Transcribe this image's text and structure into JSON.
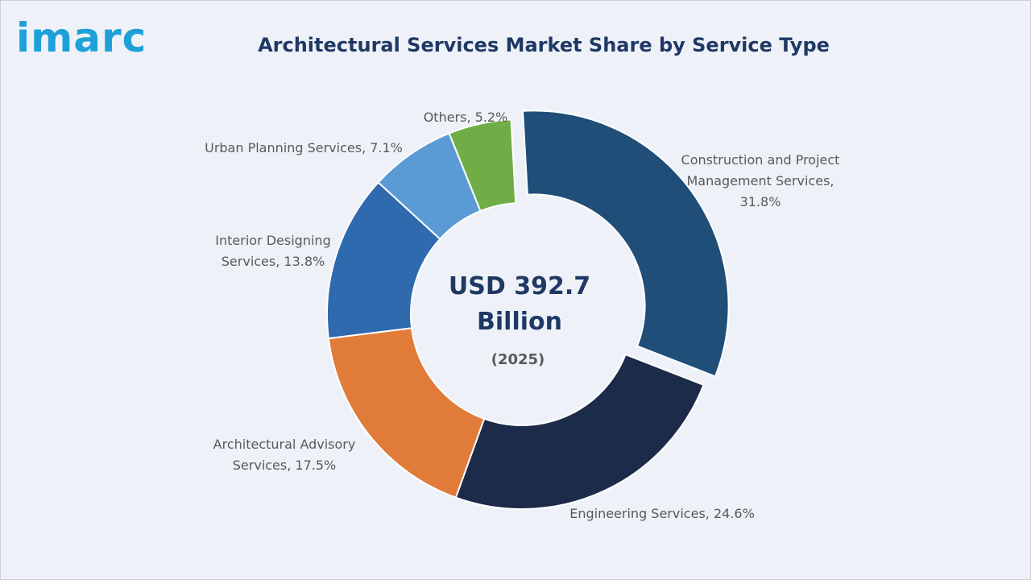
{
  "logo": {
    "text": "imarc",
    "color": "#1ea0d8"
  },
  "chart_data": {
    "type": "pie",
    "variant": "donut",
    "title": "Architectural Services Market Share by Service Type",
    "center": {
      "line1": "USD 392.7",
      "line2": "Billion",
      "line3": "(2025)"
    },
    "slices": [
      {
        "label_lines": [
          "Construction and Project",
          "Management Services,",
          "31.8%"
        ],
        "value": 31.8,
        "color": "#1f4e79",
        "exploded": true
      },
      {
        "label_lines": [
          "Engineering Services, 24.6%"
        ],
        "value": 24.6,
        "color": "#1c2b4a",
        "exploded": false
      },
      {
        "label_lines": [
          "Architectural Advisory",
          "Services, 17.5%"
        ],
        "value": 17.5,
        "color": "#e07b39",
        "exploded": false
      },
      {
        "label_lines": [
          "Interior Designing",
          "Services, 13.8%"
        ],
        "value": 13.8,
        "color": "#2e6aad",
        "exploded": false
      },
      {
        "label_lines": [
          "Urban Planning Services, 7.1%"
        ],
        "value": 7.1,
        "color": "#5b9bd5",
        "exploded": false
      },
      {
        "label_lines": [
          "Others, 5.2%"
        ],
        "value": 5.2,
        "color": "#70ad47",
        "exploded": false
      }
    ]
  }
}
